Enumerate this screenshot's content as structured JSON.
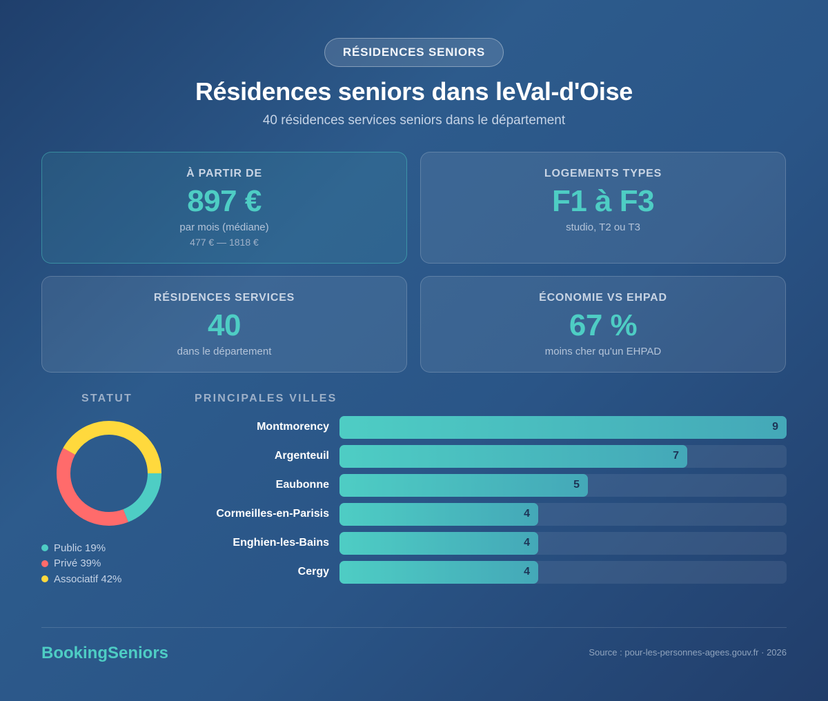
{
  "badge": "RÉSIDENCES SENIORS",
  "title": "Résidences seniors dans leVal-d'Oise",
  "subtitle": "40 résidences services seniors dans le département",
  "cards": {
    "price": {
      "label": "À PARTIR DE",
      "value": "897 €",
      "sub1": "par mois (médiane)",
      "sub2": "477 € — 1818 €"
    },
    "types": {
      "label": "LOGEMENTS TYPES",
      "value": "F1 à F3",
      "sub1": "studio, T2 ou T3"
    },
    "count": {
      "label": "RÉSIDENCES SERVICES",
      "value": "40",
      "sub1": "dans le département"
    },
    "saving": {
      "label": "ÉCONOMIE VS EHPAD",
      "value": "67 %",
      "sub1": "moins cher qu'un EHPAD"
    }
  },
  "colors": {
    "accent": "#4ecdc4",
    "public": "#4ecdc4",
    "prive": "#ff6b6b",
    "associatif": "#ffd93d"
  },
  "chart_data": [
    {
      "type": "pie",
      "title": "STATUT",
      "categories": [
        "Public",
        "Privé",
        "Associatif"
      ],
      "values": [
        19,
        39,
        42
      ],
      "legend": [
        "Public 19%",
        "Privé 39%",
        "Associatif 42%"
      ],
      "colors": [
        "#4ecdc4",
        "#ff6b6b",
        "#ffd93d"
      ]
    },
    {
      "type": "bar",
      "title": "PRINCIPALES VILLES",
      "categories": [
        "Montmorency",
        "Argenteuil",
        "Eaubonne",
        "Cormeilles-en-Parisis",
        "Enghien-les-Bains",
        "Cergy"
      ],
      "values": [
        9,
        7,
        5,
        4,
        4,
        4
      ],
      "xlim": [
        0,
        9
      ],
      "grid": false
    }
  ],
  "footer": {
    "brand": "BookingSeniors",
    "source": "Source : pour-les-personnes-agees.gouv.fr · 2026"
  }
}
